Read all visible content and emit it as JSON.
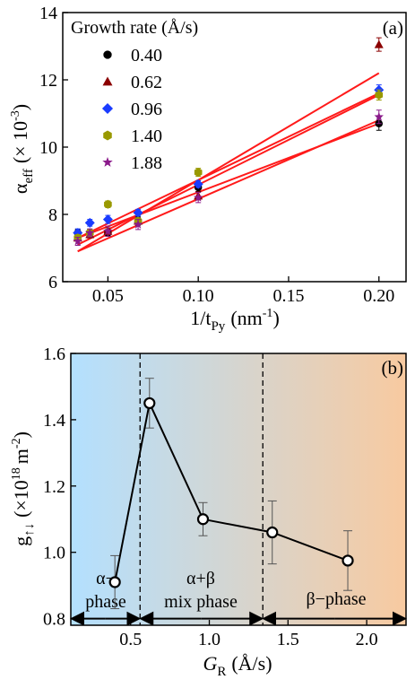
{
  "chart_data": [
    {
      "type": "scatter",
      "panel_label": "(a)",
      "xlabel": "1/t",
      "xlabel_sub": "Py",
      "xlabel_unit": "(nm",
      "xlabel_unit_sup": "-1",
      "xlabel_unit_end": ")",
      "ylabel": "α",
      "ylabel_sub": "eff",
      "ylabel_unit": "(× 10",
      "ylabel_unit_sup": "-3",
      "ylabel_unit_end": ")",
      "xlim": [
        0.025,
        0.215
      ],
      "ylim": [
        6,
        14
      ],
      "xticks": [
        "0.05",
        "0.10",
        "0.15",
        "0.20"
      ],
      "xtick_values": [
        0.05,
        0.1,
        0.15,
        0.2
      ],
      "yticks": [
        "6",
        "8",
        "10",
        "12",
        "14"
      ],
      "ytick_values": [
        6,
        8,
        10,
        12,
        14
      ],
      "legend_title": "Growth rate (Å/s)",
      "legend_position": "top-left",
      "fit_color": "#ff1a1a",
      "series": [
        {
          "name": "0.40",
          "marker": "circle",
          "color": "#000000",
          "x": [
            0.0333,
            0.04,
            0.05,
            0.0667,
            0.1,
            0.2
          ],
          "y": [
            7.45,
            7.45,
            7.45,
            7.8,
            8.8,
            10.7
          ],
          "err": [
            0.1,
            0.1,
            0.1,
            0.12,
            0.12,
            0.2
          ],
          "fit": [
            6.9,
            10.8
          ]
        },
        {
          "name": "0.62",
          "marker": "triangle",
          "color": "#8b0000",
          "x": [
            0.0333,
            0.04,
            0.05,
            0.0667,
            0.1,
            0.2
          ],
          "y": [
            7.3,
            7.4,
            7.5,
            7.8,
            8.55,
            13.05
          ],
          "err": [
            0.1,
            0.1,
            0.1,
            0.1,
            0.12,
            0.2
          ],
          "fit": [
            6.9,
            12.2
          ]
        },
        {
          "name": "0.96",
          "marker": "diamond",
          "color": "#1a3cff",
          "x": [
            0.0333,
            0.04,
            0.05,
            0.0667,
            0.1,
            0.2
          ],
          "y": [
            7.45,
            7.75,
            7.85,
            8.05,
            8.9,
            11.7
          ],
          "err": [
            0.12,
            0.1,
            0.12,
            0.1,
            0.1,
            0.15
          ],
          "fit": [
            7.3,
            11.6
          ]
        },
        {
          "name": "1.40",
          "marker": "hexagon",
          "color": "#999900",
          "x": [
            0.0333,
            0.04,
            0.05,
            0.0667,
            0.1,
            0.2
          ],
          "y": [
            7.3,
            7.45,
            8.3,
            7.8,
            9.25,
            11.55
          ],
          "err": [
            0.1,
            0.1,
            0.1,
            0.1,
            0.12,
            0.15
          ],
          "fit": [
            7.1,
            11.55
          ]
        },
        {
          "name": "1.88",
          "marker": "star",
          "color": "#8b1a8b",
          "x": [
            0.0333,
            0.04,
            0.05,
            0.0667,
            0.1,
            0.2
          ],
          "y": [
            7.2,
            7.45,
            7.5,
            7.7,
            8.5,
            10.9
          ],
          "err": [
            0.12,
            0.12,
            0.15,
            0.15,
            0.15,
            0.2
          ],
          "fit": [
            7.3,
            10.7
          ]
        }
      ]
    },
    {
      "type": "line",
      "panel_label": "(b)",
      "xlabel": "G",
      "xlabel_sub": "R",
      "xlabel_unit": "(Å/s)",
      "ylabel": "g",
      "ylabel_sub": "↑↓",
      "ylabel_unit": "(×10",
      "ylabel_unit_sup": "18",
      "ylabel_unit_end": "m",
      "ylabel_unit_sup2": "-2",
      "ylabel_unit_close": ")",
      "xlim": [
        0.12,
        2.25
      ],
      "ylim": [
        0.78,
        1.6
      ],
      "xticks": [
        "0.5",
        "1.0",
        "1.5",
        "2.0"
      ],
      "xtick_values": [
        0.5,
        1.0,
        1.5,
        2.0
      ],
      "yticks": [
        "0.8",
        "1.0",
        "1.2",
        "1.4",
        "1.6"
      ],
      "ytick_values": [
        0.8,
        1.0,
        1.2,
        1.4,
        1.6
      ],
      "x": [
        0.4,
        0.62,
        0.96,
        1.4,
        1.88
      ],
      "y": [
        0.91,
        1.45,
        1.1,
        1.06,
        0.975
      ],
      "err": [
        0.08,
        0.075,
        0.05,
        0.095,
        0.09
      ],
      "phase_boundaries": [
        0.56,
        1.34
      ],
      "background_gradient": [
        "#b3e0ff",
        "#f8caa0"
      ],
      "phase_labels": [
        {
          "line1": "α−",
          "line2": "phase"
        },
        {
          "line1": "α+β",
          "line2": "mix phase"
        },
        {
          "line1": "β−phase",
          "line2": ""
        }
      ]
    }
  ]
}
